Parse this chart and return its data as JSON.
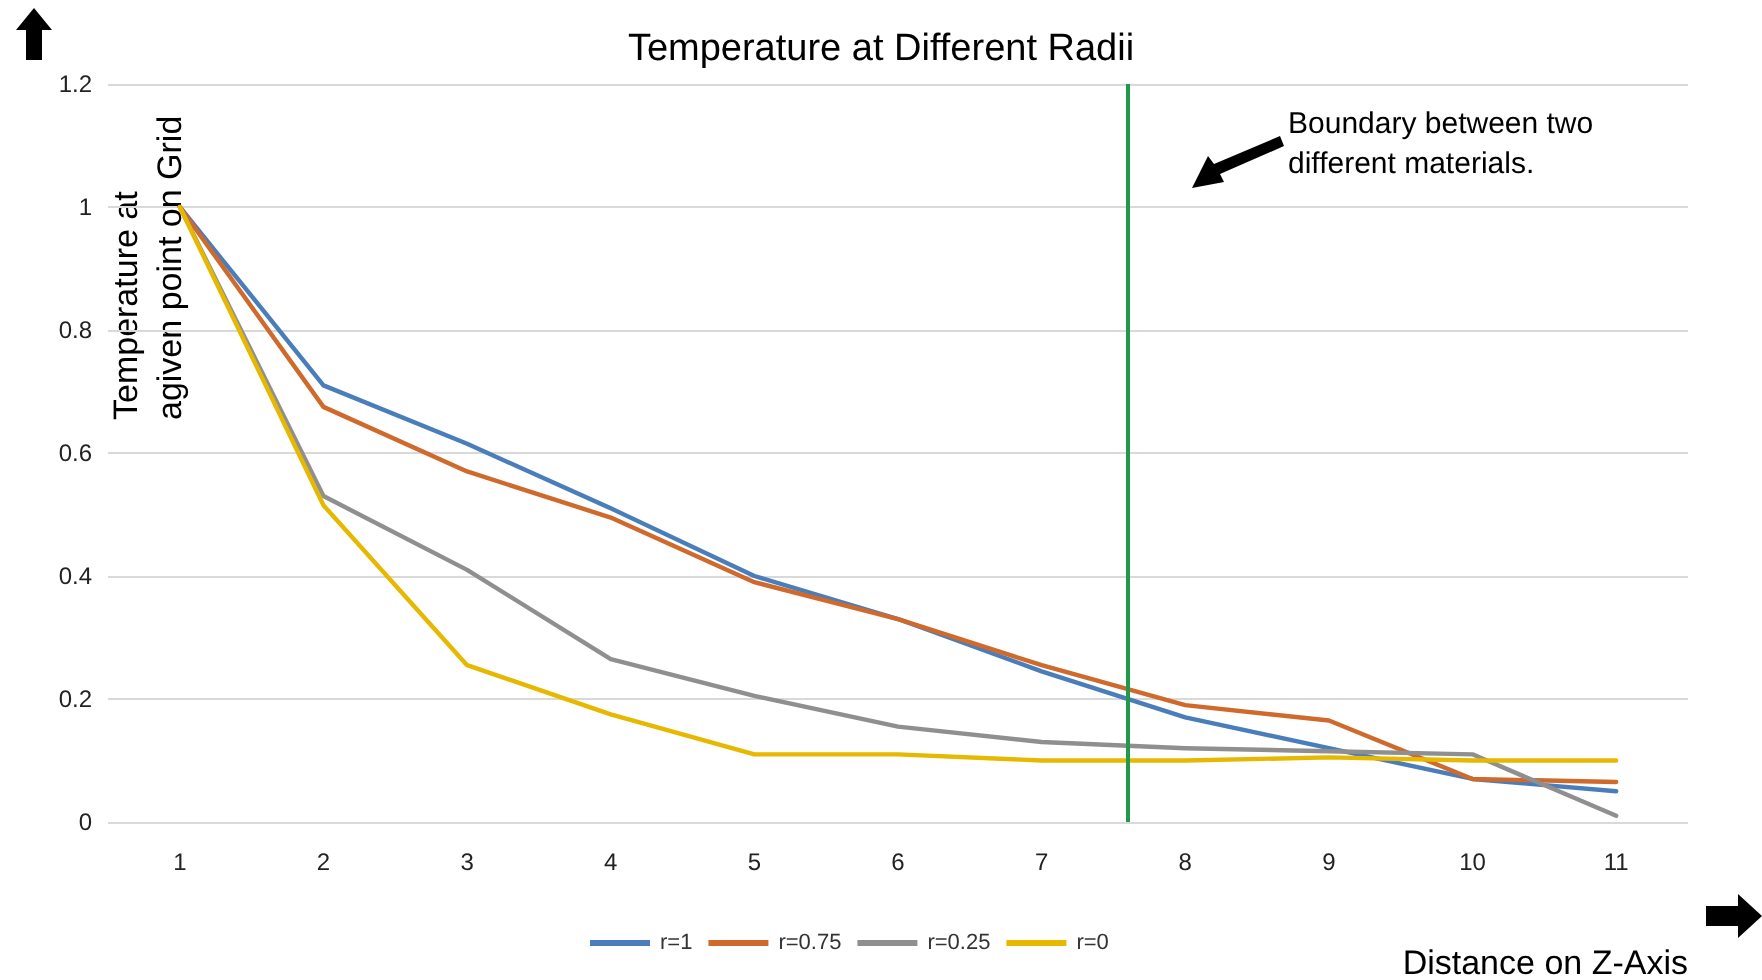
{
  "chart_data": {
    "type": "line",
    "title": "Temperature at Different Radii",
    "xlabel": "Distance on Z-Axis",
    "ylabel": "Temperature at agiven point on Grid",
    "x": [
      1,
      2,
      3,
      4,
      5,
      6,
      7,
      8,
      9,
      10,
      11
    ],
    "xlim": [
      0.5,
      11.5
    ],
    "xticks": [
      1,
      2,
      3,
      4,
      5,
      6,
      7,
      8,
      9,
      10,
      11
    ],
    "ylim": [
      0,
      1.2
    ],
    "yticks": [
      0,
      0.2,
      0.4,
      0.6,
      0.8,
      1,
      1.2
    ],
    "series": [
      {
        "name": "r=1",
        "color": "#4a7ebb",
        "values": [
          1,
          0.71,
          0.615,
          0.51,
          0.4,
          0.33,
          0.245,
          0.17,
          0.12,
          0.07,
          0.05
        ]
      },
      {
        "name": "r=0.75",
        "color": "#d0692c",
        "values": [
          1,
          0.675,
          0.57,
          0.495,
          0.39,
          0.33,
          0.255,
          0.19,
          0.165,
          0.07,
          0.065
        ]
      },
      {
        "name": "r=0.25",
        "color": "#8f8f8f",
        "values": [
          1,
          0.53,
          0.41,
          0.265,
          0.205,
          0.155,
          0.13,
          0.12,
          0.115,
          0.11,
          0.01
        ]
      },
      {
        "name": "r=0",
        "color": "#e6b800",
        "values": [
          1,
          0.515,
          0.255,
          0.175,
          0.11,
          0.11,
          0.1,
          0.1,
          0.105,
          0.1,
          0.1
        ]
      }
    ],
    "ref_lines": [
      {
        "axis": "x",
        "value": 7.6,
        "color": "#1e9a4a"
      }
    ],
    "annotations": [
      "Boundary between two different materials."
    ],
    "grid": "y",
    "legend": "bottom",
    "marker": "none",
    "line_style": "solid"
  }
}
